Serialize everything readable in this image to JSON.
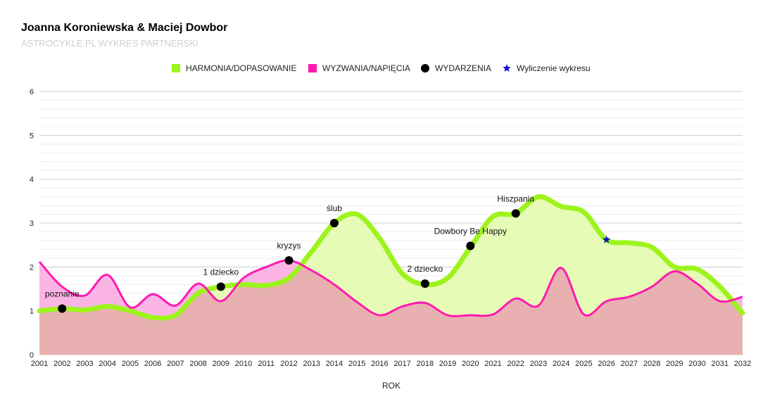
{
  "chart_data": {
    "type": "area",
    "title": "Joanna Koroniewska & Maciej Dowbor",
    "subtitle": "ASTROCYKLE.PL WYKRES PARTNERSKI",
    "xlabel": "ROK",
    "ylabel": "",
    "ylim": [
      0,
      6
    ],
    "yticks": [
      "0",
      "1",
      "2",
      "3",
      "4",
      "5",
      "6"
    ],
    "x": [
      2001,
      2002,
      2003,
      2004,
      2005,
      2006,
      2007,
      2008,
      2009,
      2010,
      2011,
      2012,
      2013,
      2014,
      2015,
      2016,
      2017,
      2018,
      2019,
      2020,
      2021,
      2022,
      2023,
      2024,
      2025,
      2026,
      2027,
      2028,
      2029,
      2030,
      2031,
      2032
    ],
    "xticks": [
      "2001",
      "2002",
      "2003",
      "2004",
      "2005",
      "2006",
      "2007",
      "2008",
      "2009",
      "2010",
      "2011",
      "2012",
      "2013",
      "2014",
      "2015",
      "2016",
      "2017",
      "2018",
      "2019",
      "2020",
      "2021",
      "2022",
      "2023",
      "2024",
      "2025",
      "2026",
      "2027",
      "2028",
      "2029",
      "2030",
      "2031",
      "2032"
    ],
    "grid": true,
    "legend_position": "top",
    "legend": [
      {
        "label": "HARMONIA/DOPASOWANIE",
        "marker": "square",
        "color": "#9cf41c"
      },
      {
        "label": "WYZWANIA/NAPIĘCIA",
        "marker": "square",
        "color": "#ff1ab0"
      },
      {
        "label": "WYDARZENIA",
        "marker": "circle",
        "color": "#000000"
      },
      {
        "label": "Wyliczenie wykresu",
        "marker": "star",
        "color": "#1010d0"
      }
    ],
    "series": [
      {
        "name": "HARMONIA/DOPASOWANIE",
        "color": "#9cf41c",
        "fill": "#e6fbb5",
        "values": [
          1.0,
          1.05,
          1.02,
          1.1,
          1.0,
          0.85,
          0.9,
          1.4,
          1.55,
          1.6,
          1.58,
          1.75,
          2.35,
          3.0,
          3.2,
          2.65,
          1.85,
          1.6,
          1.75,
          2.45,
          3.15,
          3.22,
          3.6,
          3.38,
          3.25,
          2.62,
          2.55,
          2.45,
          2.0,
          1.95,
          1.55,
          0.95
        ]
      },
      {
        "name": "WYZWANIA/NAPIĘCIA",
        "color": "#ff1ab0",
        "fill": "#fbb5e5",
        "values": [
          2.12,
          1.55,
          1.35,
          1.82,
          1.08,
          1.38,
          1.12,
          1.62,
          1.22,
          1.75,
          2.0,
          2.15,
          1.92,
          1.6,
          1.2,
          0.9,
          1.1,
          1.18,
          0.9,
          0.9,
          0.92,
          1.28,
          1.12,
          1.98,
          0.92,
          1.22,
          1.32,
          1.55,
          1.9,
          1.62,
          1.22,
          1.32
        ]
      }
    ],
    "events": [
      {
        "x": 2002,
        "y": 1.05,
        "label": "poznanie"
      },
      {
        "x": 2009,
        "y": 1.55,
        "label": "1 dziecko"
      },
      {
        "x": 2012,
        "y": 2.15,
        "label": "kryzys"
      },
      {
        "x": 2014,
        "y": 3.0,
        "label": "ślub"
      },
      {
        "x": 2018,
        "y": 1.62,
        "label": "2 dziecko"
      },
      {
        "x": 2020,
        "y": 2.48,
        "label": "Dowbory Be Happy"
      },
      {
        "x": 2022,
        "y": 3.22,
        "label": "Hiszpania"
      }
    ],
    "marker_star": {
      "x": 2026,
      "y": 2.62
    },
    "overlap_fill": "#e8b0b0",
    "gridline_color": "#cccccc",
    "minor_gridline_color": "#ececec"
  }
}
